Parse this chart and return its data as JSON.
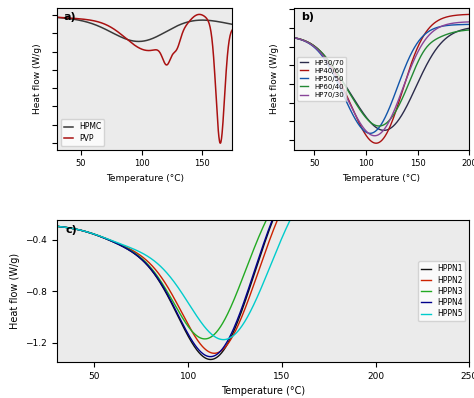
{
  "panel_a": {
    "title": "a)",
    "xlabel": "Temperature (°C)",
    "ylabel": "Heat flow (W/g)",
    "xlim": [
      30,
      175
    ],
    "xticks": [
      50,
      100,
      150
    ],
    "legend": [
      "HPMC",
      "PVP"
    ],
    "colors": [
      "#3a3a3a",
      "#aa1111"
    ]
  },
  "panel_b": {
    "title": "b)",
    "xlabel": "Temperature (°C)",
    "ylabel": "Heat flow (W/g)",
    "xlim": [
      30,
      200
    ],
    "xticks": [
      50,
      100,
      150,
      200
    ],
    "legend": [
      "HP30/70",
      "HP40/60",
      "HP50/50",
      "HP60/40",
      "HP70/30"
    ],
    "colors": [
      "#2b2b4b",
      "#aa1111",
      "#1155aa",
      "#228833",
      "#884499"
    ]
  },
  "panel_c": {
    "title": "c)",
    "xlabel": "Temperature (°C)",
    "ylabel": "Heat flow (W/g)",
    "xlim": [
      30,
      250
    ],
    "xticks": [
      50,
      100,
      150,
      200,
      250
    ],
    "yticks": [
      -1.2,
      -0.8,
      -0.4
    ],
    "ylim": [
      -1.35,
      -0.25
    ],
    "legend": [
      "HPPN1",
      "HPPN2",
      "HPPN3",
      "HPPN4",
      "HPPN5"
    ],
    "colors": [
      "#111111",
      "#cc2200",
      "#22aa22",
      "#00008b",
      "#00cccc"
    ]
  }
}
